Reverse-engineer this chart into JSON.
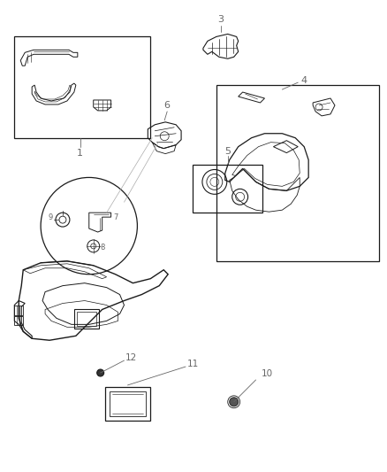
{
  "bg_color": "#ffffff",
  "line_color": "#1a1a1a",
  "label_color": "#666666",
  "fig_width": 4.38,
  "fig_height": 5.33,
  "dpi": 100
}
